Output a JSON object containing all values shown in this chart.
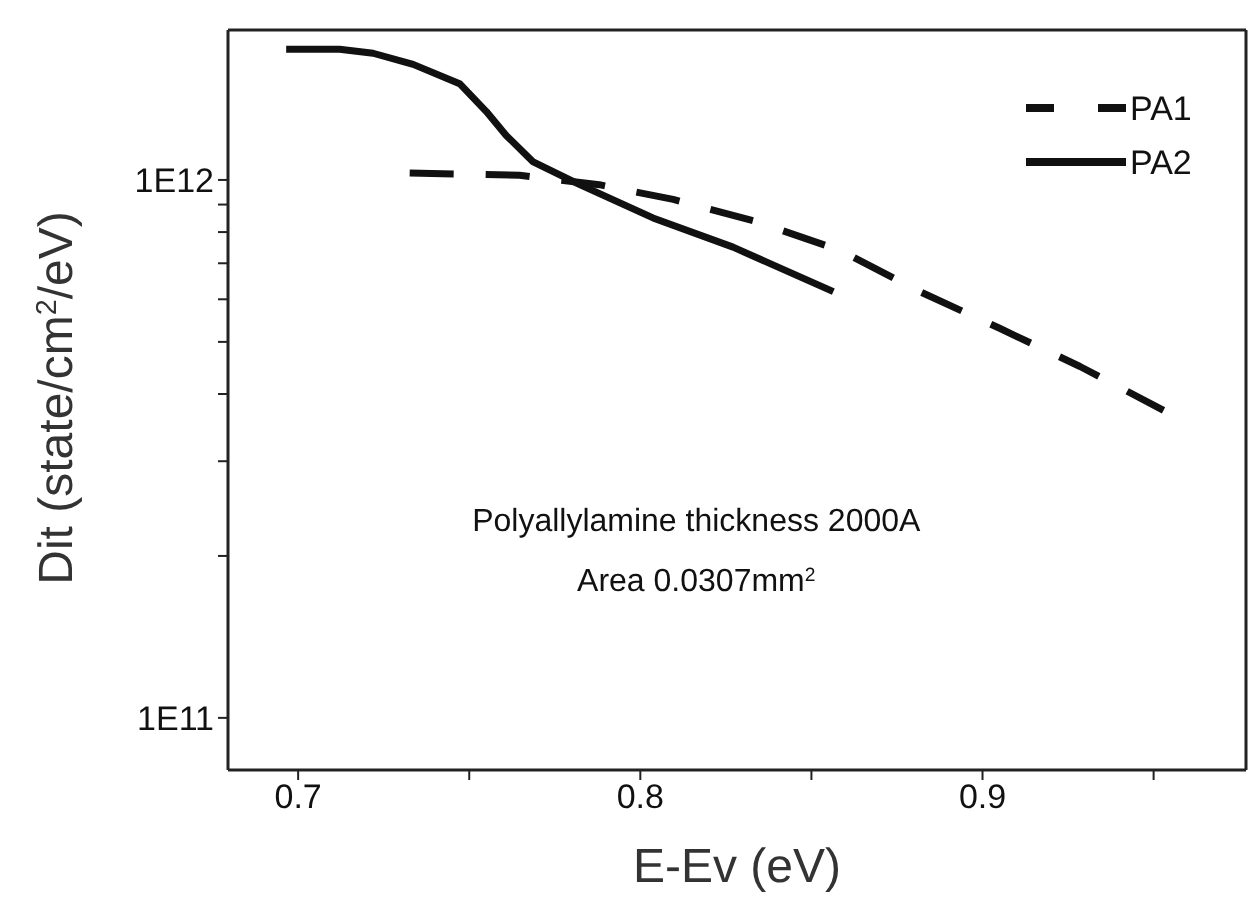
{
  "chart_data": {
    "type": "line",
    "xlabel": "E-Ev (eV)",
    "ylabel": "Dit (state/cm$^{2}$/eV)",
    "log": "y",
    "grid": false,
    "legend": "top right",
    "marker": "none",
    "xlim": [
      0.6795,
      0.977
    ],
    "xticks": [
      0.7,
      {
        "value": 0.75,
        "label": null
      },
      0.8,
      {
        "value": 0.85,
        "label": null
      },
      0.9,
      {
        "value": 0.95,
        "label": null
      }
    ],
    "ylim": [
      80000000000,
      1900000000000
    ],
    "yticks": [
      {
        "value": 100000000000,
        "label": "1E11"
      },
      {
        "value": 200000000000,
        "label": null
      },
      {
        "value": 300000000000,
        "label": null
      },
      {
        "value": 400000000000,
        "label": null
      },
      {
        "value": 500000000000,
        "label": null
      },
      {
        "value": 600000000000,
        "label": null
      },
      {
        "value": 700000000000,
        "label": null
      },
      {
        "value": 800000000000,
        "label": null
      },
      {
        "value": 900000000000,
        "label": null
      },
      {
        "value": 1000000000000,
        "label": "1E12"
      }
    ],
    "annotations": [
      "Polyallylamine thickness 2000A",
      "Area 0.0307mm$^{2}$"
    ],
    "series": [
      {
        "name": "PA1",
        "color": "#111111",
        "line_style": "dashed",
        "x": [
          0.7326,
          0.7647,
          0.788,
          0.8096,
          0.833,
          0.8583,
          0.8817,
          0.905,
          0.9285,
          0.9529
        ],
        "values": [
          1030000000000,
          1020000000000,
          980000000000,
          920000000000,
          840000000000,
          740000000000,
          620000000000,
          530000000000,
          450000000000,
          373000000000
        ]
      },
      {
        "name": "PA2",
        "color": "#111111",
        "line_style": "solid",
        "x": [
          0.6965,
          0.7121,
          0.7219,
          0.7336,
          0.7472,
          0.755,
          0.7608,
          0.7687,
          0.7823,
          0.8037,
          0.8271,
          0.8564
        ],
        "values": [
          1750000000000,
          1750000000000,
          1720000000000,
          1640000000000,
          1510000000000,
          1340000000000,
          1210000000000,
          1080000000000,
          980000000000,
          850000000000,
          750000000000,
          620000000000
        ]
      }
    ]
  }
}
